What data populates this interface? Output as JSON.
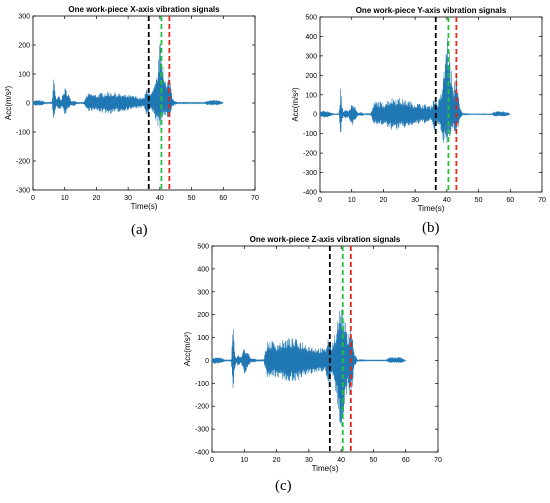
{
  "figure": {
    "captions": [
      "(a)",
      "(b)",
      "(c)"
    ]
  },
  "colors": {
    "signal": "#1f77b4",
    "black_line": "#000000",
    "green_line": "#22c33a",
    "red_line": "#e0261b"
  },
  "chart_data": [
    {
      "type": "line",
      "title": "One work-piece X-axis vibration signals",
      "xlabel": "Time(s)",
      "ylabel": "Acc(m/s²)",
      "xlim": [
        0,
        70
      ],
      "ylim": [
        -300,
        300
      ],
      "xticks": [
        0,
        10,
        20,
        30,
        40,
        50,
        60,
        70
      ],
      "yticks": [
        -300,
        -200,
        -100,
        0,
        100,
        200,
        300
      ],
      "grid": false,
      "vertical_lines": [
        {
          "x": 36.5,
          "style": "dashed",
          "color": "black"
        },
        {
          "x": 40.5,
          "style": "dashed",
          "color": "green"
        },
        {
          "x": 43.0,
          "style": "dashed",
          "color": "red"
        }
      ],
      "envelope": {
        "x": [
          0,
          1,
          2,
          3,
          4,
          5,
          6,
          6.5,
          7,
          7.5,
          8,
          9,
          10,
          11,
          12,
          13,
          14,
          16,
          17,
          18,
          20,
          22,
          24,
          26,
          28,
          30,
          32,
          34,
          35,
          36,
          37,
          38,
          39,
          40,
          41,
          42,
          43,
          44,
          45,
          46,
          48,
          50,
          52,
          54,
          55,
          56,
          57,
          58,
          59,
          60
        ],
        "upper": [
          8,
          10,
          10,
          8,
          3,
          2,
          3,
          100,
          35,
          10,
          30,
          15,
          55,
          40,
          8,
          10,
          3,
          3,
          30,
          35,
          30,
          38,
          40,
          38,
          30,
          28,
          25,
          20,
          18,
          60,
          30,
          50,
          90,
          215,
          160,
          60,
          105,
          20,
          5,
          3,
          2,
          2,
          2,
          2,
          10,
          10,
          10,
          10,
          8,
          0
        ],
        "lower": [
          -8,
          -10,
          -10,
          -8,
          -3,
          -2,
          -3,
          -80,
          -30,
          -10,
          -30,
          -15,
          -40,
          -30,
          -8,
          -10,
          -3,
          -3,
          -25,
          -30,
          -28,
          -35,
          -38,
          -35,
          -30,
          -25,
          -20,
          -18,
          -15,
          -50,
          -25,
          -40,
          -70,
          -95,
          -60,
          -40,
          -60,
          -15,
          -5,
          -3,
          -2,
          -2,
          -2,
          -2,
          -8,
          -8,
          -8,
          -8,
          -6,
          0
        ]
      }
    },
    {
      "type": "line",
      "title": "One work-piece Y-axis vibration signals",
      "xlabel": "Time(s)",
      "ylabel": "Acc(m/s²)",
      "xlim": [
        0,
        70
      ],
      "ylim": [
        -400,
        500
      ],
      "xticks": [
        0,
        10,
        20,
        30,
        40,
        50,
        60,
        70
      ],
      "yticks": [
        -400,
        -300,
        -200,
        -100,
        0,
        100,
        200,
        300,
        400,
        500
      ],
      "grid": false,
      "vertical_lines": [
        {
          "x": 36.5,
          "style": "dashed",
          "color": "black"
        },
        {
          "x": 40.5,
          "style": "dashed",
          "color": "green"
        },
        {
          "x": 43.0,
          "style": "dashed",
          "color": "red"
        }
      ],
      "envelope": {
        "x": [
          0,
          1,
          2,
          3,
          4,
          5,
          6,
          6.5,
          7,
          7.5,
          8,
          9,
          10,
          11,
          12,
          13,
          14,
          16,
          17,
          18,
          20,
          22,
          24,
          26,
          28,
          30,
          32,
          34,
          35,
          36,
          37,
          38,
          39,
          40,
          41,
          42,
          43,
          44,
          45,
          46,
          48,
          50,
          52,
          54,
          55,
          56,
          57,
          58,
          59,
          60
        ],
        "upper": [
          15,
          18,
          18,
          15,
          3,
          2,
          3,
          140,
          40,
          10,
          30,
          15,
          60,
          40,
          8,
          10,
          3,
          3,
          60,
          70,
          60,
          85,
          90,
          80,
          70,
          60,
          55,
          50,
          40,
          100,
          60,
          100,
          210,
          440,
          310,
          120,
          250,
          40,
          5,
          3,
          2,
          2,
          2,
          2,
          15,
          15,
          15,
          15,
          12,
          0
        ],
        "lower": [
          -15,
          -18,
          -18,
          -15,
          -3,
          -2,
          -3,
          -120,
          -40,
          -10,
          -30,
          -15,
          -60,
          -40,
          -8,
          -10,
          -3,
          -3,
          -50,
          -60,
          -55,
          -80,
          -85,
          -75,
          -65,
          -55,
          -50,
          -45,
          -35,
          -90,
          -55,
          -90,
          -150,
          -180,
          -120,
          -80,
          -120,
          -30,
          -5,
          -3,
          -2,
          -2,
          -2,
          -2,
          -12,
          -12,
          -12,
          -12,
          -10,
          0
        ]
      }
    },
    {
      "type": "line",
      "title": "One work-piece Z-axis vibration signals",
      "xlabel": "Time(s)",
      "ylabel": "Acc(m/s²)",
      "xlim": [
        0,
        70
      ],
      "ylim": [
        -400,
        500
      ],
      "xticks": [
        0,
        10,
        20,
        30,
        40,
        50,
        60,
        70
      ],
      "yticks": [
        -400,
        -300,
        -200,
        -100,
        0,
        100,
        200,
        300,
        400,
        500
      ],
      "grid": false,
      "vertical_lines": [
        {
          "x": 36.5,
          "style": "dashed",
          "color": "black"
        },
        {
          "x": 40.5,
          "style": "dashed",
          "color": "green"
        },
        {
          "x": 43.0,
          "style": "dashed",
          "color": "red"
        }
      ],
      "envelope": {
        "x": [
          0,
          1,
          2,
          3,
          4,
          5,
          6,
          6.5,
          7,
          7.5,
          8,
          9,
          10,
          11,
          12,
          13,
          14,
          16,
          17,
          18,
          20,
          22,
          24,
          26,
          28,
          30,
          32,
          34,
          35,
          36,
          37,
          38,
          39,
          40,
          41,
          42,
          43,
          44,
          45,
          46,
          48,
          50,
          52,
          54,
          55,
          56,
          57,
          58,
          59,
          60
        ],
        "upper": [
          12,
          15,
          15,
          12,
          3,
          2,
          3,
          170,
          45,
          10,
          30,
          15,
          60,
          40,
          8,
          10,
          3,
          3,
          80,
          90,
          80,
          90,
          100,
          95,
          85,
          70,
          60,
          55,
          50,
          110,
          70,
          120,
          200,
          260,
          190,
          110,
          180,
          40,
          5,
          3,
          2,
          2,
          2,
          2,
          15,
          15,
          15,
          15,
          12,
          0
        ],
        "lower": [
          -12,
          -15,
          -15,
          -12,
          -3,
          -2,
          -3,
          -170,
          -45,
          -10,
          -30,
          -15,
          -60,
          -40,
          -8,
          -10,
          -3,
          -3,
          -70,
          -80,
          -75,
          -85,
          -95,
          -90,
          -80,
          -65,
          -55,
          -50,
          -45,
          -150,
          -65,
          -110,
          -230,
          -340,
          -200,
          -120,
          -200,
          -35,
          -5,
          -3,
          -2,
          -2,
          -2,
          -2,
          -12,
          -12,
          -12,
          -12,
          -10,
          0
        ]
      }
    }
  ]
}
